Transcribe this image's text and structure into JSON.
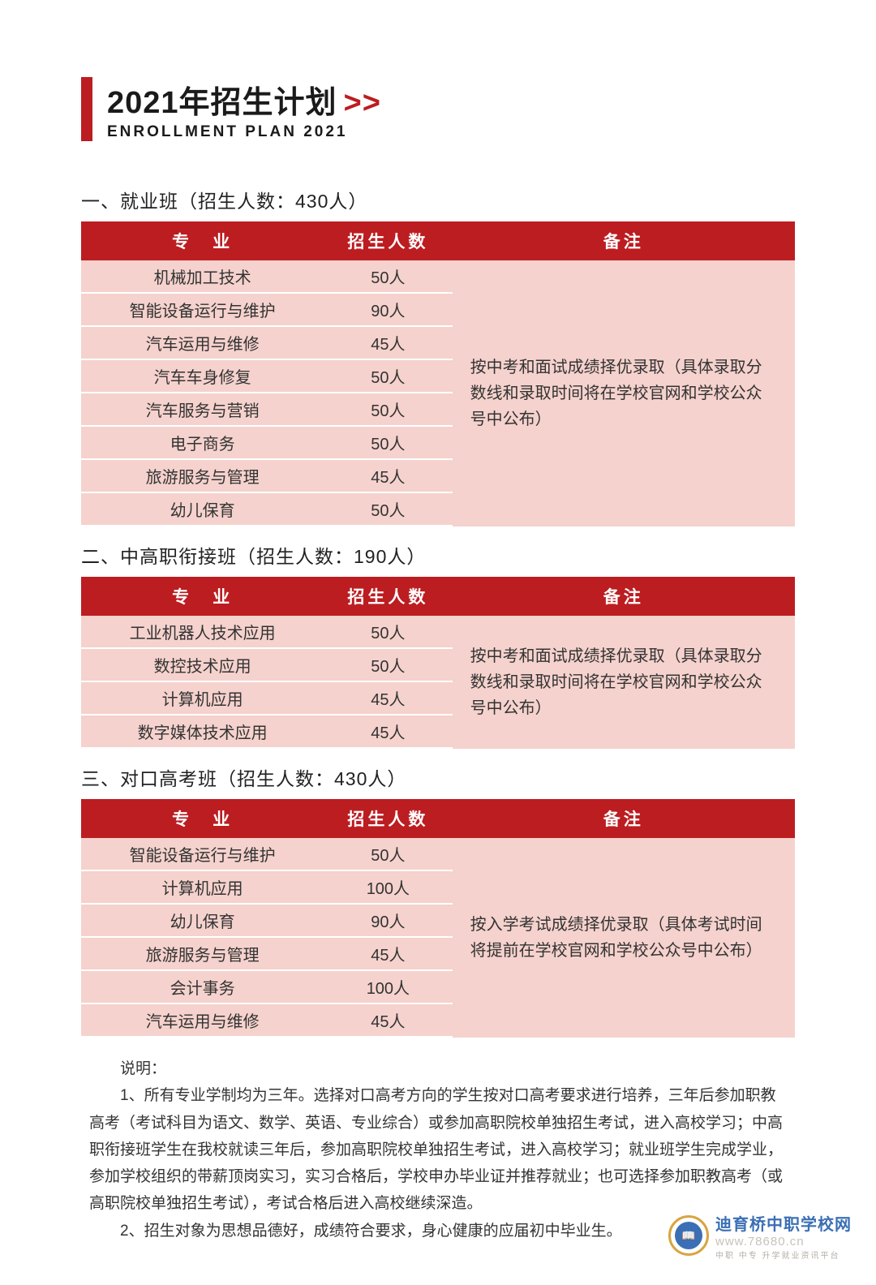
{
  "colors": {
    "accent_red": "#bc1d21",
    "row_bg": "#f5d2cd",
    "header_text": "#ffffff",
    "body_text": "#333333",
    "wm_blue": "#3b6fb5",
    "wm_gold": "#d9a441"
  },
  "title": {
    "cn": "2021年招生计划",
    "chevrons": ">>",
    "en": "ENROLLMENT PLAN 2021"
  },
  "table_headers": {
    "major": "专　业",
    "count": "招生人数",
    "note": "备注"
  },
  "sections": [
    {
      "heading": "一、就业班（招生人数：430人）",
      "note": "按中考和面试成绩择优录取（具体录取分数线和录取时间将在学校官网和学校公众号中公布）",
      "rows": [
        {
          "major": "机械加工技术",
          "count": "50人"
        },
        {
          "major": "智能设备运行与维护",
          "count": "90人"
        },
        {
          "major": "汽车运用与维修",
          "count": "45人"
        },
        {
          "major": "汽车车身修复",
          "count": "50人"
        },
        {
          "major": "汽车服务与营销",
          "count": "50人"
        },
        {
          "major": "电子商务",
          "count": "50人"
        },
        {
          "major": "旅游服务与管理",
          "count": "45人"
        },
        {
          "major": "幼儿保育",
          "count": "50人"
        }
      ]
    },
    {
      "heading": "二、中高职衔接班（招生人数：190人）",
      "note": "按中考和面试成绩择优录取（具体录取分数线和录取时间将在学校官网和学校公众号中公布）",
      "rows": [
        {
          "major": "工业机器人技术应用",
          "count": "50人"
        },
        {
          "major": "数控技术应用",
          "count": "50人"
        },
        {
          "major": "计算机应用",
          "count": "45人"
        },
        {
          "major": "数字媒体技术应用",
          "count": "45人"
        }
      ]
    },
    {
      "heading": "三、对口高考班（招生人数：430人）",
      "note": "按入学考试成绩择优录取（具体考试时间将提前在学校官网和学校公众号中公布）",
      "rows": [
        {
          "major": "智能设备运行与维护",
          "count": "50人"
        },
        {
          "major": "计算机应用",
          "count": "100人"
        },
        {
          "major": "幼儿保育",
          "count": "90人"
        },
        {
          "major": "旅游服务与管理",
          "count": "45人"
        },
        {
          "major": "会计事务",
          "count": "100人"
        },
        {
          "major": "汽车运用与维修",
          "count": "45人"
        }
      ]
    }
  ],
  "explain": {
    "label": "说明：",
    "p1": "1、所有专业学制均为三年。选择对口高考方向的学生按对口高考要求进行培养，三年后参加职教高考（考试科目为语文、数学、英语、专业综合）或参加高职院校单独招生考试，进入高校学习；中高职衔接班学生在我校就读三年后，参加高职院校单独招生考试，进入高校学习；就业班学生完成学业，参加学校组织的带薪顶岗实习，实习合格后，学校申办毕业证并推荐就业；也可选择参加职教高考（或高职院校单独招生考试），考试合格后进入高校继续深造。",
    "p2": "2、招生对象为思想品德好，成绩符合要求，身心健康的应届初中毕业生。"
  },
  "watermark": {
    "title": "迪育桥中职学校网",
    "url": "www.78680.cn",
    "sub": "中职 中专 升学就业资讯平台",
    "badge_glyph": "📖"
  }
}
